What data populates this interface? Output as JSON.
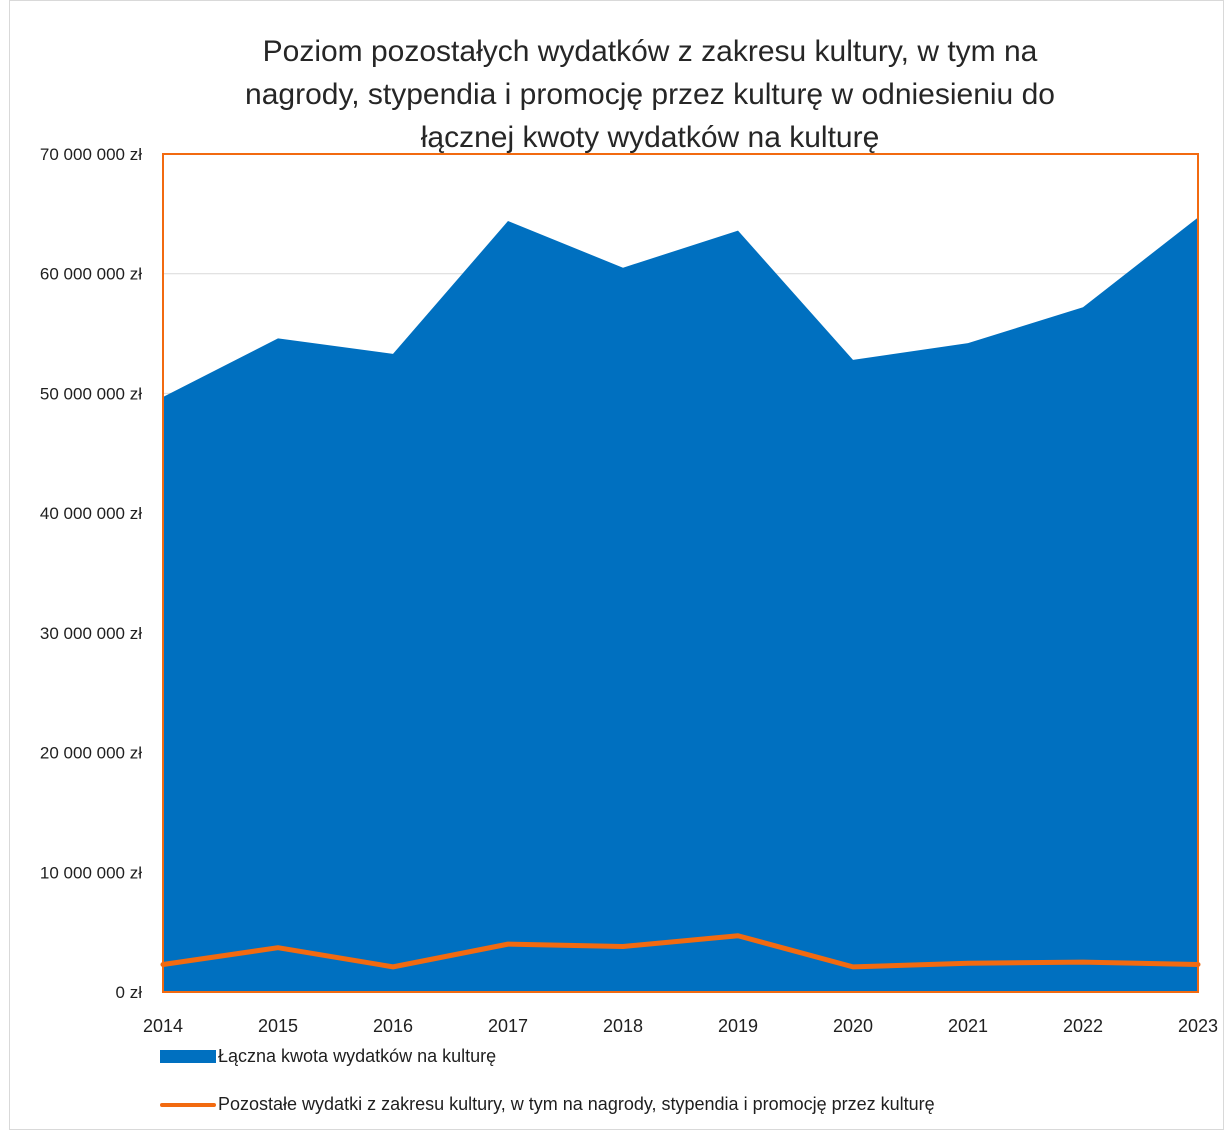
{
  "chart_data": {
    "type": "area",
    "title_lines": [
      "Poziom pozostałych wydatków z zakresu kultury, w tym na",
      "nagrody, stypendia i promocję przez kulturę w odniesieniu do",
      "łącznej kwoty wydatków na kulturę"
    ],
    "x": [
      "2014",
      "2015",
      "2016",
      "2017",
      "2018",
      "2019",
      "2020",
      "2021",
      "2022",
      "2023"
    ],
    "ylim": [
      0,
      70000000
    ],
    "y_ticks": [
      0,
      10000000,
      20000000,
      30000000,
      40000000,
      50000000,
      60000000,
      70000000
    ],
    "y_tick_labels": [
      "0 zł",
      "10 000 000 zł",
      "20 000 000 zł",
      "30 000 000 zł",
      "40 000 000 zł",
      "50 000 000 zł",
      "60 000 000 zł",
      "70 000 000 zł"
    ],
    "grid": true,
    "legend_position": "bottom",
    "series": [
      {
        "name": "Łączna kwota wydatków na kulturę",
        "type": "area",
        "color": "#0070c0",
        "values": [
          49700000,
          54600000,
          53300000,
          64400000,
          60500000,
          63600000,
          52800000,
          54200000,
          57200000,
          64700000
        ]
      },
      {
        "name": "Pozostałe wydatki z zakresu kultury, w tym na nagrody, stypendia i promocję przez kulturę",
        "type": "line",
        "color": "#f26a10",
        "values": [
          2300000,
          3700000,
          2100000,
          4000000,
          3800000,
          4700000,
          2100000,
          2400000,
          2500000,
          2300000
        ]
      }
    ],
    "plot_border_color": "#f26a10"
  }
}
